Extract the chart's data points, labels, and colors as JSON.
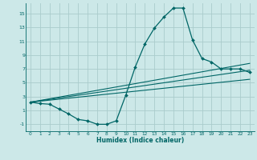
{
  "xlabel": "Humidex (Indice chaleur)",
  "bg_color": "#cce8e8",
  "grid_color": "#aacccc",
  "line_color": "#006666",
  "xlim": [
    -0.5,
    23.5
  ],
  "ylim": [
    -2.0,
    16.5
  ],
  "xticks": [
    0,
    1,
    2,
    3,
    4,
    5,
    6,
    7,
    8,
    9,
    10,
    11,
    12,
    13,
    14,
    15,
    16,
    17,
    18,
    19,
    20,
    21,
    22,
    23
  ],
  "yticks": [
    -1,
    1,
    3,
    5,
    7,
    9,
    11,
    13,
    15
  ],
  "line1_x": [
    0,
    1,
    2,
    3,
    4,
    5,
    6,
    7,
    8,
    9,
    10,
    11,
    12,
    13,
    14,
    15,
    16,
    17,
    18,
    19,
    20,
    21,
    22,
    23
  ],
  "line1_y": [
    2.2,
    2.0,
    1.9,
    1.2,
    0.5,
    -0.3,
    -0.5,
    -1.0,
    -1.0,
    -0.5,
    3.2,
    7.3,
    10.6,
    12.9,
    14.5,
    15.8,
    15.8,
    11.2,
    8.5,
    8.0,
    7.0,
    7.0,
    7.0,
    6.5
  ],
  "line2_x": [
    0,
    23
  ],
  "line2_y": [
    2.2,
    7.8
  ],
  "line3_x": [
    0,
    23
  ],
  "line3_y": [
    2.2,
    6.8
  ],
  "line4_x": [
    0,
    23
  ],
  "line4_y": [
    2.2,
    5.5
  ]
}
